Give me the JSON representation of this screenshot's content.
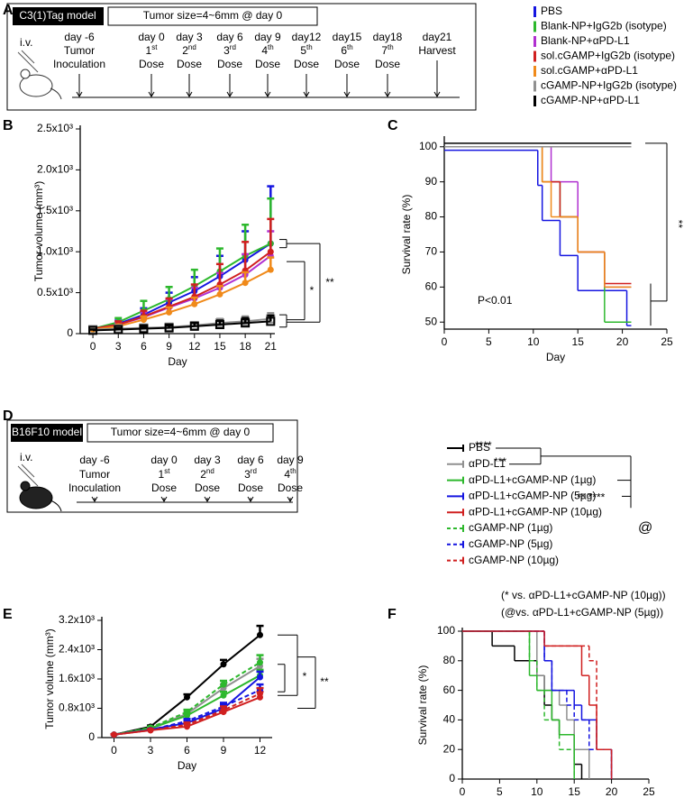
{
  "panels": [
    "A",
    "B",
    "C",
    "D",
    "E",
    "F"
  ],
  "timelines": [
    {
      "model": "C3(1)Tag model",
      "size": "Tumor size=4~6mm @ day 0",
      "route": "i.v.",
      "events": [
        {
          "day": "day -6",
          "lines": [
            "Tumor",
            "Inoculation"
          ]
        },
        {
          "day": "day 0",
          "ordinal": "1",
          "suffix": "st",
          "lines": [
            "Dose"
          ]
        },
        {
          "day": "day 3",
          "ordinal": "2",
          "suffix": "nd",
          "lines": [
            "Dose"
          ]
        },
        {
          "day": "day 6",
          "ordinal": "3",
          "suffix": "rd",
          "lines": [
            "Dose"
          ]
        },
        {
          "day": "day 9",
          "ordinal": "4",
          "suffix": "th",
          "lines": [
            "Dose"
          ]
        },
        {
          "day": "day12",
          "ordinal": "5",
          "suffix": "th",
          "lines": [
            "Dose"
          ]
        },
        {
          "day": "day15",
          "ordinal": "6",
          "suffix": "th",
          "lines": [
            "Dose"
          ]
        },
        {
          "day": "day18",
          "ordinal": "7",
          "suffix": "th",
          "lines": [
            "Dose"
          ]
        },
        {
          "day": "day21",
          "lines": [
            "Harvest"
          ]
        }
      ]
    },
    {
      "model": "B16F10 model",
      "size": "Tumor size=4~6mm @ day 0",
      "route": "i.v.",
      "events": [
        {
          "day": "day -6",
          "lines": [
            "Tumor",
            "Inoculation"
          ]
        },
        {
          "day": "day 0",
          "ordinal": "1",
          "suffix": "st",
          "lines": [
            "Dose"
          ]
        },
        {
          "day": "day 3",
          "ordinal": "2",
          "suffix": "nd",
          "lines": [
            "Dose"
          ]
        },
        {
          "day": "day 6",
          "ordinal": "3",
          "suffix": "rd",
          "lines": [
            "Dose"
          ]
        },
        {
          "day": "day 9",
          "ordinal": "4",
          "suffix": "th",
          "lines": [
            "Dose"
          ]
        }
      ]
    }
  ],
  "chart_data": [
    {
      "type": "line",
      "y_label": "Tumor volume (mm³)",
      "x_label": "Day",
      "x": [
        0,
        3,
        6,
        9,
        12,
        15,
        18,
        21
      ],
      "xlim": [
        -1.5,
        21.5
      ],
      "xticks": [
        0,
        3,
        6,
        9,
        12,
        15,
        18,
        21
      ],
      "ylim": [
        0,
        2500
      ],
      "yticks": [
        0,
        {
          "value": 500,
          "label": "0.5x10³"
        },
        {
          "value": 1000,
          "label": "1.0x10³"
        },
        {
          "value": 1500,
          "label": "1.5x10³"
        },
        {
          "value": 2000,
          "label": "2.0x10³"
        },
        {
          "value": 2500,
          "label": "2.5x10³"
        }
      ],
      "series": [
        {
          "name": "PBS",
          "color": "#1515e0",
          "values": [
            60,
            120,
            230,
            380,
            520,
            700,
            900,
            1100
          ],
          "errors": [
            20,
            40,
            80,
            120,
            170,
            250,
            350,
            700
          ]
        },
        {
          "name": "Blank-NP+IgG2b (isotype)",
          "color": "#2db82d",
          "values": [
            60,
            140,
            280,
            420,
            580,
            760,
            950,
            1100
          ],
          "errors": [
            20,
            50,
            120,
            150,
            200,
            280,
            380,
            550
          ]
        },
        {
          "name": "Blank-NP+αPD-L1",
          "color": "#b030d0",
          "values": [
            60,
            110,
            200,
            320,
            430,
            560,
            720,
            950
          ],
          "errors": [
            15,
            30,
            60,
            100,
            130,
            180,
            250,
            300
          ]
        },
        {
          "name": "sol.cGAMP+IgG2b (isotype)",
          "color": "#d02020",
          "values": [
            60,
            110,
            210,
            330,
            450,
            600,
            770,
            1000
          ],
          "errors": [
            15,
            40,
            70,
            100,
            150,
            250,
            350,
            400
          ]
        },
        {
          "name": "sol.cGAMP+αPD-L1",
          "color": "#f08a1a",
          "values": [
            50,
            90,
            170,
            260,
            360,
            480,
            620,
            780
          ],
          "errors": [
            10,
            20,
            40,
            60,
            80,
            100,
            130,
            150
          ]
        },
        {
          "name": "cGAMP-NP+IgG2b (isotype)",
          "color": "#909090",
          "marker": "square",
          "values": [
            50,
            60,
            70,
            80,
            100,
            130,
            150,
            180
          ],
          "errors": [
            10,
            15,
            20,
            30,
            40,
            50,
            60,
            70
          ]
        },
        {
          "name": "cGAMP-NP+αPD-L1",
          "color": "#000000",
          "marker": "square",
          "values": [
            40,
            50,
            60,
            70,
            90,
            110,
            130,
            150
          ],
          "errors": [
            10,
            15,
            20,
            30,
            40,
            50,
            60,
            70
          ]
        }
      ],
      "annotations": [
        "*",
        "**"
      ]
    },
    {
      "type": "step",
      "y_label": "Survival rate (%)",
      "x_label": "Day",
      "xlim": [
        0,
        25
      ],
      "xticks": [
        0,
        5,
        10,
        15,
        20,
        25
      ],
      "ylim": [
        48,
        102
      ],
      "yticks": [
        50,
        60,
        70,
        80,
        90,
        100
      ],
      "series": [
        {
          "color": "#1515e0",
          "x": [
            0,
            10.5,
            11,
            13,
            15,
            20.5,
            21
          ],
          "values": [
            99,
            89,
            79,
            69,
            59,
            49,
            49
          ]
        },
        {
          "color": "#2db82d",
          "x": [
            0,
            11,
            13,
            15,
            18,
            21
          ],
          "values": [
            100,
            90,
            80,
            70,
            50,
            50
          ]
        },
        {
          "color": "#b030d0",
          "x": [
            0,
            12,
            15,
            18,
            21
          ],
          "values": [
            100,
            90,
            70,
            60,
            60
          ]
        },
        {
          "color": "#d02020",
          "x": [
            0,
            11,
            13,
            15,
            18,
            21
          ],
          "values": [
            100,
            90,
            80,
            70,
            61,
            61
          ]
        },
        {
          "color": "#f08a1a",
          "x": [
            0,
            11,
            12,
            15,
            18,
            21
          ],
          "values": [
            100,
            90,
            80,
            70,
            60,
            60
          ]
        },
        {
          "color": "#909090",
          "x": [
            0,
            21
          ],
          "values": [
            100,
            100
          ]
        },
        {
          "color": "#000000",
          "x": [
            0,
            21
          ],
          "values": [
            101,
            101
          ]
        }
      ],
      "annotations": [
        "P<0.01",
        "**"
      ]
    },
    {
      "type": "line",
      "y_label": "Tumor volume (mm³)",
      "x_label": "Day",
      "x": [
        0,
        3,
        6,
        9,
        12
      ],
      "xlim": [
        -1,
        13
      ],
      "xticks": [
        0,
        3,
        6,
        9,
        12
      ],
      "ylim": [
        0,
        3200
      ],
      "yticks": [
        0,
        {
          "value": 800,
          "label": "0.8x10³"
        },
        {
          "value": 1600,
          "label": "1.6x10³"
        },
        {
          "value": 2400,
          "label": "2.4x10³"
        },
        {
          "value": 3200,
          "label": "3.2x10³"
        }
      ],
      "series": [
        {
          "name": "PBS",
          "color": "#000000",
          "values": [
            80,
            300,
            1100,
            2000,
            2800
          ],
          "errors": [
            10,
            30,
            80,
            120,
            250
          ]
        },
        {
          "name": "αPD-L1",
          "color": "#909090",
          "values": [
            80,
            250,
            650,
            1350,
            1950
          ],
          "errors": [
            10,
            30,
            50,
            100,
            200
          ]
        },
        {
          "name": "αPD-L1+cGAMP-NP (1µg)",
          "color": "#2db82d",
          "values": [
            80,
            250,
            600,
            1150,
            1700
          ],
          "errors": [
            10,
            30,
            60,
            100,
            150
          ]
        },
        {
          "name": "αPD-L1+cGAMP-NP (5µg)",
          "color": "#1515e0",
          "values": [
            80,
            220,
            400,
            800,
            1650
          ],
          "errors": [
            10,
            30,
            60,
            100,
            150
          ]
        },
        {
          "name": "αPD-L1+cGAMP-NP (10µg)",
          "color": "#d02020",
          "values": [
            80,
            200,
            300,
            700,
            1100
          ],
          "errors": [
            10,
            30,
            60,
            100,
            150
          ]
        },
        {
          "name": "cGAMP-NP (1µg)",
          "color": "#2db82d",
          "line_style": "dashed",
          "values": [
            80,
            270,
            700,
            1450,
            2050
          ],
          "errors": [
            10,
            30,
            60,
            100,
            200
          ]
        },
        {
          "name": "cGAMP-NP (5µg)",
          "color": "#1515e0",
          "line_style": "dashed",
          "values": [
            80,
            210,
            450,
            850,
            1300
          ],
          "errors": [
            10,
            30,
            60,
            100,
            150
          ]
        },
        {
          "name": "cGAMP-NP (10µg)",
          "color": "#d02020",
          "line_style": "dashed",
          "values": [
            80,
            200,
            350,
            750,
            1200
          ],
          "errors": [
            10,
            30,
            60,
            100,
            150
          ]
        }
      ],
      "annotations": [
        "****",
        "***",
        "** ****",
        "@",
        "*",
        "**"
      ]
    },
    {
      "type": "step",
      "y_label": "Survival rate (%)",
      "x_label": "Day",
      "xlim": [
        0,
        25
      ],
      "xticks": [
        0,
        5,
        10,
        15,
        20,
        25
      ],
      "ylim": [
        0,
        100
      ],
      "yticks": [
        0,
        20,
        40,
        60,
        80,
        100
      ],
      "series": [
        {
          "color": "#000000",
          "x": [
            0,
            4,
            7,
            10,
            11,
            12,
            13,
            15,
            16
          ],
          "values": [
            100,
            90,
            80,
            70,
            50,
            40,
            30,
            10,
            0
          ]
        },
        {
          "color": "#909090",
          "x": [
            0,
            10,
            11,
            13,
            14,
            15,
            17
          ],
          "values": [
            100,
            70,
            60,
            50,
            40,
            20,
            0
          ]
        },
        {
          "color": "#2db82d",
          "x": [
            0,
            9,
            10,
            12,
            13,
            15
          ],
          "values": [
            100,
            70,
            60,
            40,
            30,
            0
          ]
        },
        {
          "color": "#1515e0",
          "x": [
            0,
            11,
            12,
            15,
            16,
            18,
            20
          ],
          "values": [
            100,
            80,
            60,
            50,
            40,
            20,
            0
          ]
        },
        {
          "color": "#d02020",
          "x": [
            0,
            11,
            16,
            17,
            18,
            20
          ],
          "values": [
            100,
            90,
            70,
            50,
            20,
            0
          ]
        },
        {
          "color": "#2db82d",
          "line_style": "dashed",
          "x": [
            0,
            9,
            10,
            11,
            13,
            15
          ],
          "values": [
            100,
            80,
            60,
            40,
            20,
            0
          ]
        },
        {
          "color": "#1515e0",
          "line_style": "dashed",
          "x": [
            0,
            11,
            12,
            14,
            15,
            17,
            20
          ],
          "values": [
            100,
            80,
            60,
            50,
            40,
            20,
            0
          ]
        },
        {
          "color": "#d02020",
          "line_style": "dashed",
          "x": [
            0,
            11,
            17,
            18,
            20
          ],
          "values": [
            100,
            90,
            80,
            20,
            0
          ]
        }
      ],
      "annotations": [
        "(* vs. αPD-L1+cGAMP-NP (10µg))",
        "(@vs. αPD-L1+cGAMP-NP (5µg))"
      ]
    }
  ]
}
